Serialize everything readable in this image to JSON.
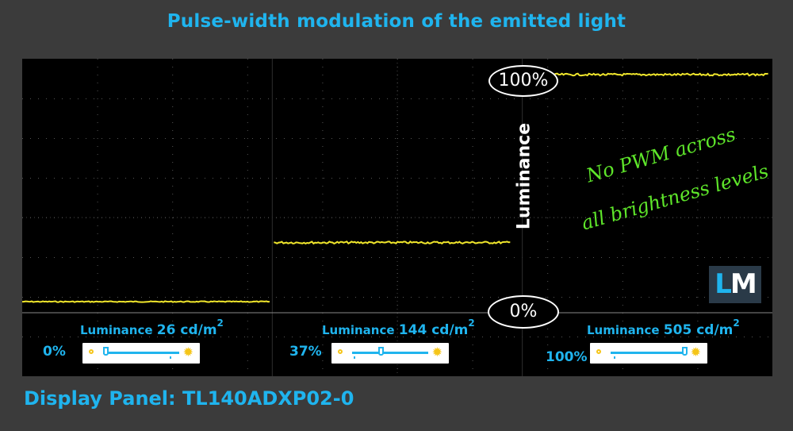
{
  "title": "Pulse-width modulation of the emitted light",
  "footer": "Display Panel: TL140ADXP02-0",
  "axis_label": "Luminance",
  "marker_top": "100%",
  "marker_bottom": "0%",
  "annotation_line1": "No PWM across",
  "annotation_line2": "all brightness levels",
  "logo": {
    "l": "L",
    "m": "M"
  },
  "colors": {
    "title": "#1fb4ee",
    "trace": "#f0e62c",
    "annotation": "#5ee62a",
    "background": "#3b3b3b",
    "scope": "#000000"
  },
  "icons": [
    "dim-sun-icon",
    "bright-sun-icon"
  ],
  "chart_data": {
    "type": "line",
    "title": "Pulse-width modulation of the emitted light",
    "ylabel": "Luminance",
    "ylim": [
      0,
      100
    ],
    "grid": true,
    "segments": [
      {
        "brightness": "0%",
        "luminance_label": "Luminance",
        "luminance_value": "26 cd/m",
        "unit_sup": "2",
        "level": 4,
        "slider": 0.0
      },
      {
        "brightness": "37%",
        "luminance_label": "Luminance",
        "luminance_value": "144 cd/m",
        "unit_sup": "2",
        "level": 29,
        "slider": 0.37
      },
      {
        "brightness": "100%",
        "luminance_label": "Luminance",
        "luminance_value": "505 cd/m",
        "unit_sup": "2",
        "level": 100,
        "slider": 1.0
      }
    ]
  }
}
